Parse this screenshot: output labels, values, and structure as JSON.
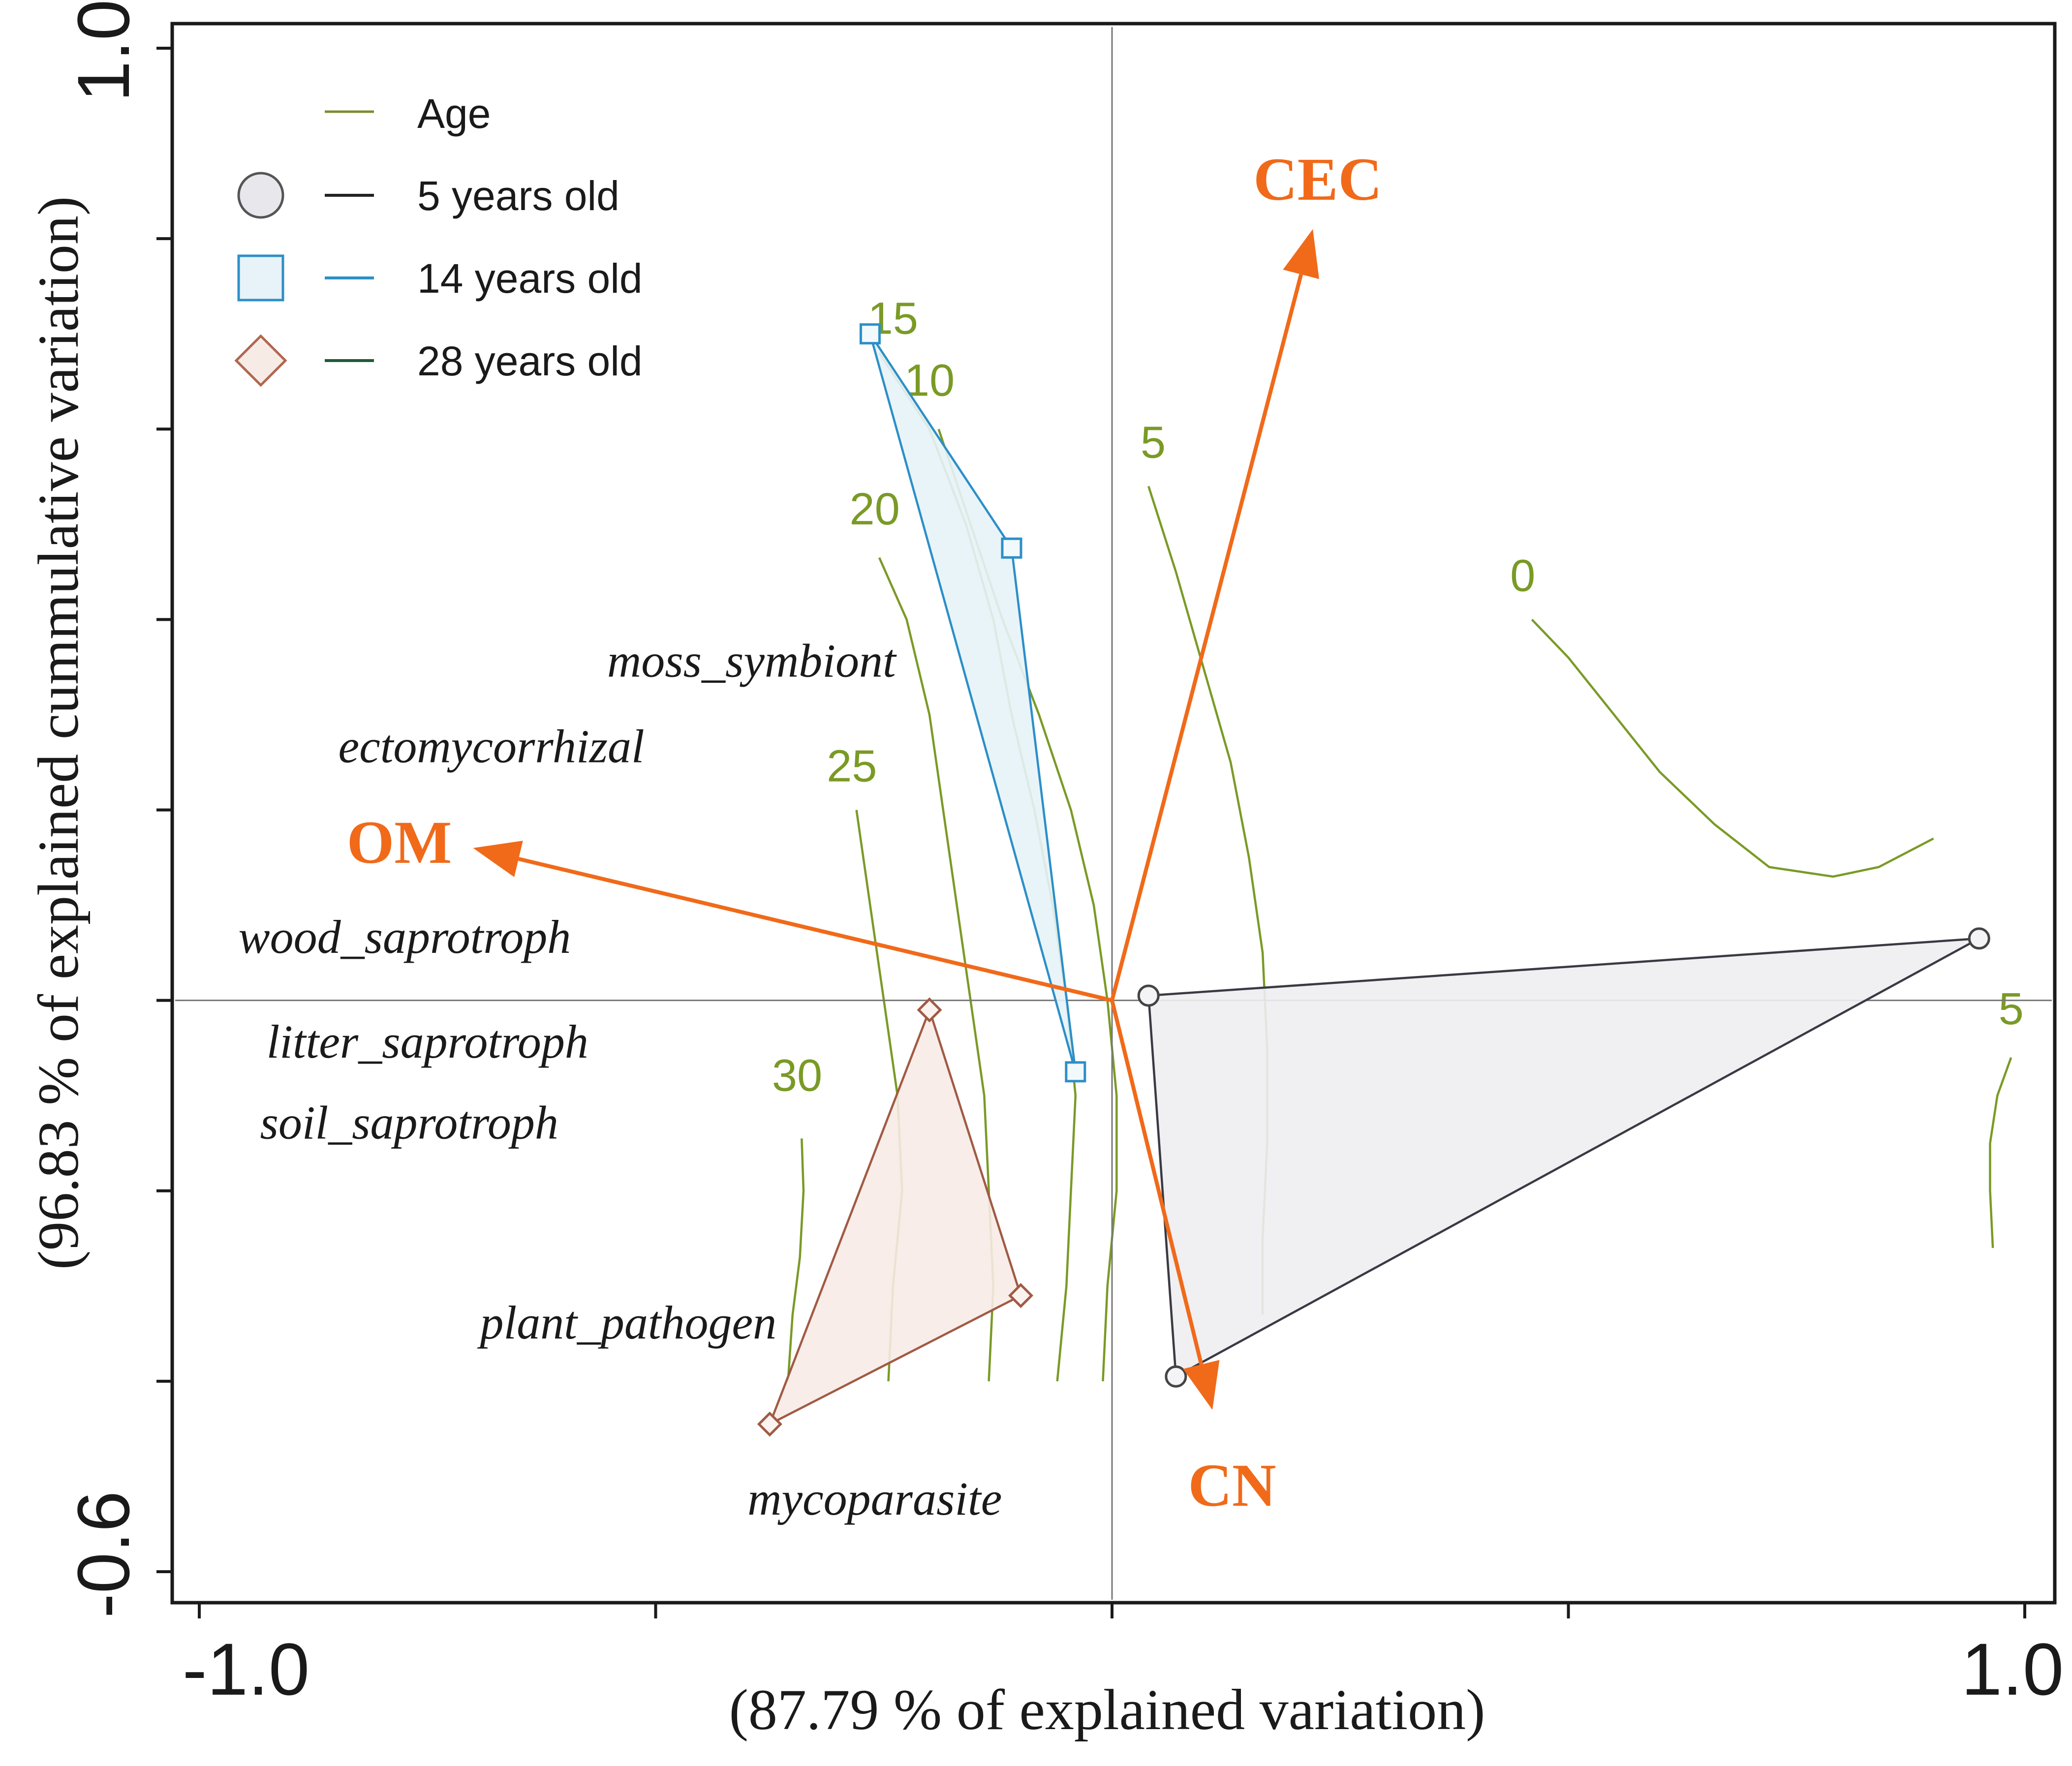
{
  "chart_data": {
    "type": "scatter",
    "subtype": "ordination biplot (RDA) with isoline surface",
    "xlabel": "(87.79 % of explained variation)",
    "ylabel": "(96.83 % of explained cummulative variation)",
    "xlim": [
      -1.0,
      1.0
    ],
    "ylim": [
      -0.6,
      1.0
    ],
    "x_tick_labels": [
      "-1.0",
      "1.0"
    ],
    "y_tick_labels": [
      "-0.6",
      "1.0"
    ],
    "x_ticks": [
      -1.0,
      -0.5,
      0.0,
      0.5,
      1.0
    ],
    "y_ticks": [
      -0.6,
      -0.4,
      -0.2,
      0.0,
      0.2,
      0.4,
      0.6,
      0.8,
      1.0
    ],
    "legend": {
      "position": "top-left",
      "title": "Age",
      "title_color": "#7a8c2e",
      "entries": [
        {
          "label": "5 years old",
          "marker": "circle",
          "fill": "#e8e8ec",
          "stroke": "#555555",
          "line_color": "#222222"
        },
        {
          "label": "14 years old",
          "marker": "square",
          "fill": "#e7f3f8",
          "stroke": "#2c8fc8",
          "line_color": "#2c8fc8"
        },
        {
          "label": "28 years old",
          "marker": "diamond",
          "fill": "#f7ebe6",
          "stroke": "#b0674f",
          "line_color": "#1f5c3a"
        }
      ]
    },
    "groups": [
      {
        "name": "5 years old",
        "color": "#3a3a44",
        "fill": "#eeeef2",
        "points": [
          [
            0.04,
            0.005
          ],
          [
            0.95,
            0.065
          ],
          [
            0.07,
            -0.395
          ]
        ]
      },
      {
        "name": "14 years old",
        "color": "#2c8fc8",
        "fill": "#e7f3f8",
        "points": [
          [
            -0.265,
            0.7
          ],
          [
            -0.11,
            0.475
          ],
          [
            -0.04,
            -0.075
          ]
        ]
      },
      {
        "name": "28 years old",
        "color": "#a05a44",
        "fill": "#f7ebe6",
        "points": [
          [
            -0.2,
            -0.01
          ],
          [
            -0.1,
            -0.31
          ],
          [
            -0.375,
            -0.445
          ]
        ]
      }
    ],
    "vectors": [
      {
        "name": "CEC",
        "x": 0.22,
        "y": 0.81
      },
      {
        "name": "OM",
        "x": -0.7,
        "y": 0.16
      },
      {
        "name": "CN",
        "x": 0.11,
        "y": -0.43
      }
    ],
    "vector_color": "#f06a1a",
    "species_labels": [
      {
        "name": "moss_symbiont",
        "x": -0.395,
        "y": 0.34
      },
      {
        "name": "ectomycorrhizal",
        "x": -0.68,
        "y": 0.25
      },
      {
        "name": "wood_saprotroph",
        "x": -0.775,
        "y": 0.05
      },
      {
        "name": "litter_saprotroph",
        "x": -0.75,
        "y": -0.06
      },
      {
        "name": "soil_saprotroph",
        "x": -0.77,
        "y": -0.145
      },
      {
        "name": "plant_pathogen",
        "x": -0.53,
        "y": -0.355
      },
      {
        "name": "mycoparasite",
        "x": -0.26,
        "y": -0.54
      }
    ],
    "isolines": [
      {
        "label": "30",
        "label_x": -0.345,
        "label_y": -0.095,
        "points": [
          [
            -0.34,
            -0.145
          ],
          [
            -0.338,
            -0.2
          ],
          [
            -0.342,
            -0.27
          ],
          [
            -0.35,
            -0.33
          ],
          [
            -0.355,
            -0.4
          ]
        ]
      },
      {
        "label": "25",
        "label_x": -0.285,
        "label_y": 0.23,
        "points": [
          [
            -0.28,
            0.2
          ],
          [
            -0.265,
            0.1
          ],
          [
            -0.25,
            0.0
          ],
          [
            -0.235,
            -0.1
          ],
          [
            -0.23,
            -0.2
          ],
          [
            -0.24,
            -0.3
          ],
          [
            -0.245,
            -0.4
          ]
        ]
      },
      {
        "label": "20",
        "label_x": -0.26,
        "label_y": 0.5,
        "points": [
          [
            -0.255,
            0.465
          ],
          [
            -0.225,
            0.4
          ],
          [
            -0.2,
            0.3
          ],
          [
            -0.185,
            0.2
          ],
          [
            -0.17,
            0.1
          ],
          [
            -0.155,
            0.0
          ],
          [
            -0.14,
            -0.1
          ],
          [
            -0.135,
            -0.2
          ],
          [
            -0.13,
            -0.3
          ],
          [
            -0.135,
            -0.4
          ]
        ]
      },
      {
        "label": "15",
        "label_x": -0.24,
        "label_y": 0.7,
        "points": [
          [
            -0.255,
            0.68
          ],
          [
            -0.2,
            0.6
          ],
          [
            -0.16,
            0.5
          ],
          [
            -0.13,
            0.4
          ],
          [
            -0.11,
            0.3
          ],
          [
            -0.085,
            0.2
          ],
          [
            -0.065,
            0.1
          ],
          [
            -0.05,
            0.0
          ],
          [
            -0.04,
            -0.1
          ],
          [
            -0.045,
            -0.2
          ],
          [
            -0.05,
            -0.3
          ],
          [
            -0.06,
            -0.4
          ]
        ]
      },
      {
        "label": "10",
        "label_x": -0.2,
        "label_y": 0.635,
        "points": [
          [
            -0.19,
            0.6
          ],
          [
            -0.155,
            0.5
          ],
          [
            -0.12,
            0.4
          ],
          [
            -0.08,
            0.3
          ],
          [
            -0.045,
            0.2
          ],
          [
            -0.02,
            0.1
          ],
          [
            -0.005,
            0.0
          ],
          [
            0.005,
            -0.1
          ],
          [
            0.005,
            -0.2
          ],
          [
            -0.005,
            -0.3
          ],
          [
            -0.01,
            -0.4
          ]
        ]
      },
      {
        "label": "5",
        "label_x": 0.045,
        "label_y": 0.57,
        "points": [
          [
            0.04,
            0.54
          ],
          [
            0.07,
            0.45
          ],
          [
            0.1,
            0.35
          ],
          [
            0.13,
            0.25
          ],
          [
            0.15,
            0.15
          ],
          [
            0.165,
            0.05
          ],
          [
            0.17,
            -0.05
          ],
          [
            0.17,
            -0.15
          ],
          [
            0.165,
            -0.25
          ],
          [
            0.165,
            -0.33
          ]
        ]
      },
      {
        "label": "0",
        "label_x": 0.45,
        "label_y": 0.43,
        "points": [
          [
            0.46,
            0.4
          ],
          [
            0.5,
            0.36
          ],
          [
            0.55,
            0.3
          ],
          [
            0.6,
            0.24
          ],
          [
            0.66,
            0.185
          ],
          [
            0.72,
            0.14
          ],
          [
            0.79,
            0.13
          ],
          [
            0.84,
            0.14
          ],
          [
            0.9,
            0.17
          ]
        ]
      },
      {
        "label": "5",
        "label_x": 0.985,
        "label_y": -0.025,
        "points": [
          [
            0.985,
            -0.06
          ],
          [
            0.97,
            -0.1
          ],
          [
            0.962,
            -0.15
          ],
          [
            0.962,
            -0.2
          ],
          [
            0.965,
            -0.26
          ]
        ]
      }
    ],
    "isoline_color": "#7a9a26"
  }
}
